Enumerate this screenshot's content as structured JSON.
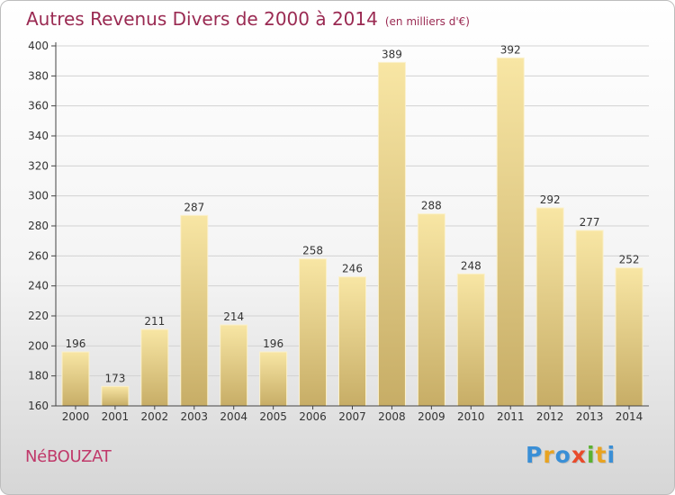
{
  "title": "Autres Revenus Divers de 2000 à 2014",
  "title_unit": "(en milliers d'€)",
  "commune": "NéBOUZAT",
  "logo": {
    "text": "Proxiti",
    "letters": [
      "P",
      "r",
      "o",
      "x",
      "i",
      "t",
      "i"
    ],
    "colors": [
      "#3a8fd6",
      "#e8a321",
      "#3a8fd6",
      "#e84a2a",
      "#5bb131",
      "#e8a321",
      "#3a8fd6"
    ]
  },
  "colors": {
    "title": "#9a2a52",
    "bar_light": "#f7e3a0",
    "bar_dark": "#c9b06a"
  },
  "chart_data": {
    "type": "bar",
    "title": "Autres Revenus Divers de 2000 à 2014",
    "categories": [
      "2000",
      "2001",
      "2002",
      "2003",
      "2004",
      "2005",
      "2006",
      "2007",
      "2008",
      "2009",
      "2010",
      "2011",
      "2012",
      "2013",
      "2014"
    ],
    "values": [
      196,
      173,
      211,
      287,
      214,
      196,
      258,
      246,
      389,
      288,
      248,
      392,
      292,
      277,
      252
    ],
    "ylim": [
      160,
      400
    ],
    "yticks": [
      160,
      180,
      200,
      220,
      240,
      260,
      280,
      300,
      320,
      340,
      360,
      380,
      400
    ],
    "grid": true,
    "xlabel": "",
    "ylabel": ""
  }
}
